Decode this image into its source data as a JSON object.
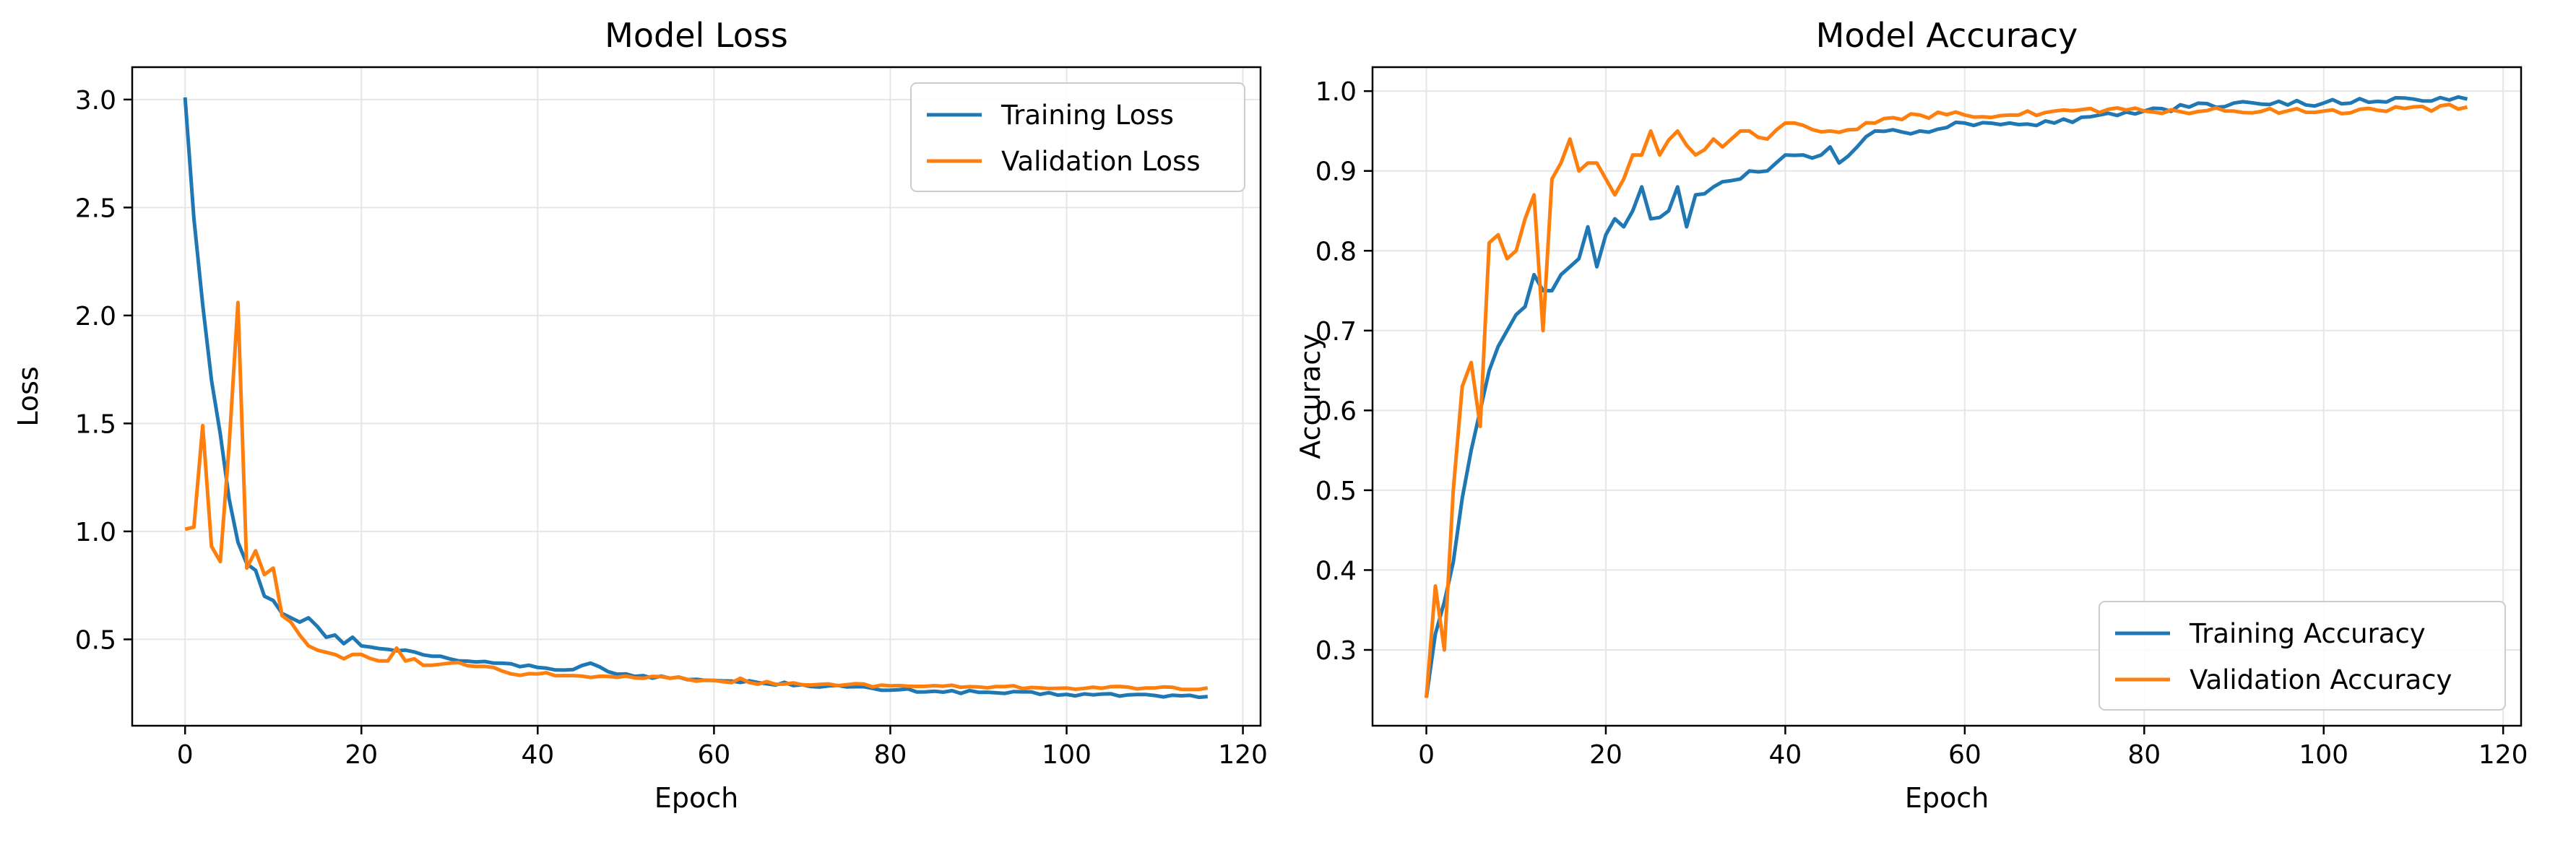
{
  "chart_data": [
    {
      "type": "line",
      "title": "Model Loss",
      "xlabel": "Epoch",
      "ylabel": "Loss",
      "xlim": [
        -6,
        122
      ],
      "ylim": [
        0.1,
        3.15
      ],
      "xticks": [
        0,
        20,
        40,
        60,
        80,
        100,
        120
      ],
      "yticks": [
        0.5,
        1.0,
        1.5,
        2.0,
        2.5,
        3.0
      ],
      "xtick_labels": [
        "0",
        "20",
        "40",
        "60",
        "80",
        "100",
        "120"
      ],
      "ytick_labels": [
        "0.5",
        "1.0",
        "1.5",
        "2.0",
        "2.5",
        "3.0"
      ],
      "grid": true,
      "legend_position": "upper right",
      "series": [
        {
          "name": "Training Loss",
          "color": "#1f77b4",
          "keypoints": [
            [
              0,
              3.01
            ],
            [
              1,
              2.45
            ],
            [
              2,
              2.05
            ],
            [
              3,
              1.7
            ],
            [
              4,
              1.45
            ],
            [
              5,
              1.15
            ],
            [
              6,
              0.95
            ],
            [
              7,
              0.85
            ],
            [
              8,
              0.82
            ],
            [
              9,
              0.7
            ],
            [
              10,
              0.68
            ],
            [
              11,
              0.62
            ],
            [
              12,
              0.6
            ],
            [
              13,
              0.58
            ],
            [
              14,
              0.6
            ],
            [
              15,
              0.56
            ],
            [
              16,
              0.51
            ],
            [
              17,
              0.52
            ],
            [
              18,
              0.48
            ],
            [
              19,
              0.51
            ],
            [
              20,
              0.47
            ],
            [
              25,
              0.45
            ],
            [
              30,
              0.41
            ],
            [
              35,
              0.39
            ],
            [
              40,
              0.37
            ],
            [
              44,
              0.36
            ],
            [
              46,
              0.39
            ],
            [
              48,
              0.35
            ],
            [
              50,
              0.34
            ],
            [
              55,
              0.32
            ],
            [
              60,
              0.31
            ],
            [
              65,
              0.3
            ],
            [
              70,
              0.29
            ],
            [
              75,
              0.28
            ],
            [
              80,
              0.265
            ],
            [
              85,
              0.26
            ],
            [
              90,
              0.255
            ],
            [
              100,
              0.245
            ],
            [
              110,
              0.24
            ],
            [
              116,
              0.235
            ]
          ],
          "noise": 0.008,
          "values": []
        },
        {
          "name": "Validation Loss",
          "color": "#ff7f0e",
          "keypoints": [
            [
              0,
              1.01
            ],
            [
              1,
              1.02
            ],
            [
              2,
              1.49
            ],
            [
              3,
              0.93
            ],
            [
              4,
              0.86
            ],
            [
              5,
              1.4
            ],
            [
              6,
              2.06
            ],
            [
              7,
              0.83
            ],
            [
              8,
              0.91
            ],
            [
              9,
              0.8
            ],
            [
              10,
              0.83
            ],
            [
              11,
              0.61
            ],
            [
              12,
              0.58
            ],
            [
              13,
              0.52
            ],
            [
              14,
              0.47
            ],
            [
              15,
              0.45
            ],
            [
              16,
              0.44
            ],
            [
              17,
              0.43
            ],
            [
              18,
              0.41
            ],
            [
              19,
              0.43
            ],
            [
              20,
              0.43
            ],
            [
              22,
              0.4
            ],
            [
              23,
              0.4
            ],
            [
              24,
              0.46
            ],
            [
              25,
              0.4
            ],
            [
              26,
              0.41
            ],
            [
              27,
              0.38
            ],
            [
              30,
              0.39
            ],
            [
              35,
              0.37
            ],
            [
              37,
              0.34
            ],
            [
              40,
              0.34
            ],
            [
              45,
              0.33
            ],
            [
              50,
              0.33
            ],
            [
              55,
              0.32
            ],
            [
              60,
              0.31
            ],
            [
              62,
              0.3
            ],
            [
              63,
              0.32
            ],
            [
              64,
              0.3
            ],
            [
              70,
              0.29
            ],
            [
              75,
              0.29
            ],
            [
              80,
              0.285
            ],
            [
              90,
              0.28
            ],
            [
              100,
              0.275
            ],
            [
              116,
              0.275
            ]
          ],
          "noise": 0.008,
          "values": []
        }
      ]
    },
    {
      "type": "line",
      "title": "Model Accuracy",
      "xlabel": "Epoch",
      "ylabel": "Accuracy",
      "xlim": [
        -6,
        122
      ],
      "ylim": [
        0.205,
        1.03
      ],
      "xticks": [
        0,
        20,
        40,
        60,
        80,
        100,
        120
      ],
      "yticks": [
        0.3,
        0.4,
        0.5,
        0.6,
        0.7,
        0.8,
        0.9,
        1.0
      ],
      "xtick_labels": [
        "0",
        "20",
        "40",
        "60",
        "80",
        "100",
        "120"
      ],
      "ytick_labels": [
        "0.3",
        "0.4",
        "0.5",
        "0.6",
        "0.7",
        "0.8",
        "0.9",
        "1.0"
      ],
      "grid": true,
      "legend_position": "lower right",
      "series": [
        {
          "name": "Training Accuracy",
          "color": "#1f77b4",
          "keypoints": [
            [
              0,
              0.24
            ],
            [
              1,
              0.32
            ],
            [
              2,
              0.36
            ],
            [
              3,
              0.41
            ],
            [
              4,
              0.49
            ],
            [
              5,
              0.55
            ],
            [
              6,
              0.6
            ],
            [
              7,
              0.65
            ],
            [
              8,
              0.68
            ],
            [
              9,
              0.7
            ],
            [
              10,
              0.72
            ],
            [
              11,
              0.73
            ],
            [
              12,
              0.77
            ],
            [
              13,
              0.75
            ],
            [
              14,
              0.75
            ],
            [
              15,
              0.77
            ],
            [
              16,
              0.78
            ],
            [
              17,
              0.79
            ],
            [
              18,
              0.83
            ],
            [
              19,
              0.78
            ],
            [
              20,
              0.82
            ],
            [
              21,
              0.84
            ],
            [
              22,
              0.83
            ],
            [
              23,
              0.85
            ],
            [
              24,
              0.88
            ],
            [
              25,
              0.84
            ],
            [
              27,
              0.85
            ],
            [
              28,
              0.88
            ],
            [
              29,
              0.83
            ],
            [
              30,
              0.87
            ],
            [
              32,
              0.88
            ],
            [
              35,
              0.89
            ],
            [
              36,
              0.9
            ],
            [
              38,
              0.9
            ],
            [
              40,
              0.92
            ],
            [
              42,
              0.92
            ],
            [
              44,
              0.92
            ],
            [
              45,
              0.93
            ],
            [
              46,
              0.91
            ],
            [
              48,
              0.93
            ],
            [
              50,
              0.95
            ],
            [
              55,
              0.95
            ],
            [
              60,
              0.96
            ],
            [
              65,
              0.96
            ],
            [
              70,
              0.96
            ],
            [
              75,
              0.97
            ],
            [
              80,
              0.975
            ],
            [
              85,
              0.98
            ],
            [
              90,
              0.985
            ],
            [
              100,
              0.985
            ],
            [
              110,
              0.99
            ],
            [
              116,
              0.99
            ]
          ],
          "noise": 0.004,
          "values": []
        },
        {
          "name": "Validation Accuracy",
          "color": "#ff7f0e",
          "keypoints": [
            [
              0,
              0.24
            ],
            [
              1,
              0.38
            ],
            [
              2,
              0.3
            ],
            [
              3,
              0.5
            ],
            [
              4,
              0.63
            ],
            [
              5,
              0.66
            ],
            [
              6,
              0.58
            ],
            [
              7,
              0.81
            ],
            [
              8,
              0.82
            ],
            [
              9,
              0.79
            ],
            [
              10,
              0.8
            ],
            [
              11,
              0.84
            ],
            [
              12,
              0.87
            ],
            [
              13,
              0.7
            ],
            [
              14,
              0.89
            ],
            [
              15,
              0.91
            ],
            [
              16,
              0.94
            ],
            [
              17,
              0.9
            ],
            [
              18,
              0.91
            ],
            [
              19,
              0.91
            ],
            [
              20,
              0.89
            ],
            [
              21,
              0.87
            ],
            [
              22,
              0.89
            ],
            [
              23,
              0.92
            ],
            [
              24,
              0.92
            ],
            [
              25,
              0.95
            ],
            [
              26,
              0.92
            ],
            [
              28,
              0.95
            ],
            [
              30,
              0.92
            ],
            [
              32,
              0.94
            ],
            [
              33,
              0.93
            ],
            [
              35,
              0.95
            ],
            [
              36,
              0.95
            ],
            [
              38,
              0.94
            ],
            [
              40,
              0.96
            ],
            [
              45,
              0.95
            ],
            [
              50,
              0.96
            ],
            [
              55,
              0.97
            ],
            [
              60,
              0.97
            ],
            [
              65,
              0.97
            ],
            [
              70,
              0.975
            ],
            [
              80,
              0.975
            ],
            [
              90,
              0.975
            ],
            [
              100,
              0.975
            ],
            [
              116,
              0.98
            ]
          ],
          "noise": 0.004,
          "values": []
        }
      ]
    }
  ]
}
